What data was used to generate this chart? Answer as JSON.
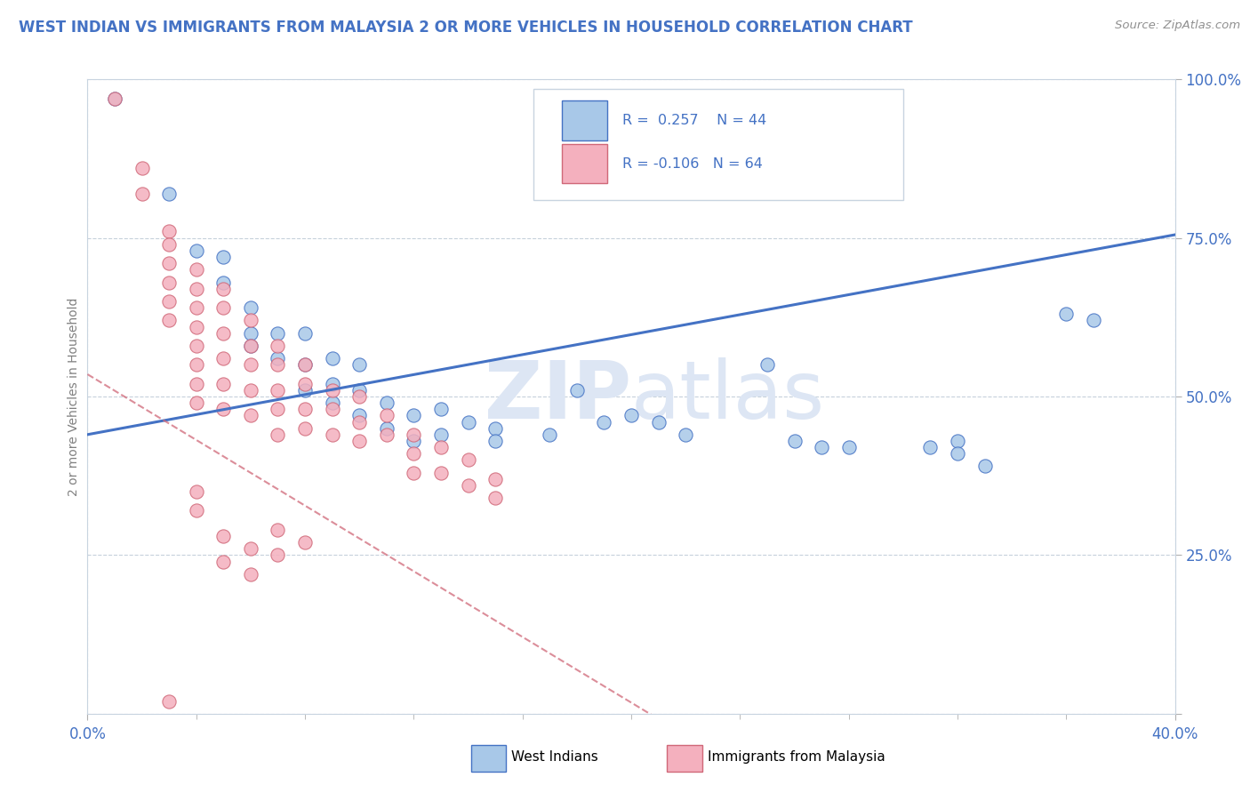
{
  "title": "WEST INDIAN VS IMMIGRANTS FROM MALAYSIA 2 OR MORE VEHICLES IN HOUSEHOLD CORRELATION CHART",
  "source": "Source: ZipAtlas.com",
  "ylabel_label": "2 or more Vehicles in Household",
  "x_min": 0.0,
  "x_max": 0.4,
  "y_min": 0.0,
  "y_max": 1.0,
  "legend_r1": "R =  0.257",
  "legend_n1": "N = 44",
  "legend_r2": "R = -0.106",
  "legend_n2": "N = 64",
  "blue_fill": "#a8c8e8",
  "blue_edge": "#4472c4",
  "pink_fill": "#f4b0be",
  "pink_edge": "#d06878",
  "blue_line_color": "#4472c4",
  "pink_line_color": "#d06878",
  "title_color": "#4472c4",
  "source_color": "#909090",
  "ylabel_color": "#808080",
  "tick_color": "#4472c4",
  "grid_color": "#c0ccd8",
  "watermark_color": "#dde6f4",
  "blue_scatter": [
    [
      0.01,
      0.97
    ],
    [
      0.03,
      0.82
    ],
    [
      0.04,
      0.73
    ],
    [
      0.05,
      0.72
    ],
    [
      0.05,
      0.68
    ],
    [
      0.06,
      0.64
    ],
    [
      0.06,
      0.6
    ],
    [
      0.06,
      0.58
    ],
    [
      0.07,
      0.6
    ],
    [
      0.07,
      0.56
    ],
    [
      0.08,
      0.6
    ],
    [
      0.08,
      0.55
    ],
    [
      0.08,
      0.51
    ],
    [
      0.09,
      0.56
    ],
    [
      0.09,
      0.52
    ],
    [
      0.09,
      0.49
    ],
    [
      0.1,
      0.55
    ],
    [
      0.1,
      0.51
    ],
    [
      0.1,
      0.47
    ],
    [
      0.11,
      0.49
    ],
    [
      0.11,
      0.45
    ],
    [
      0.12,
      0.47
    ],
    [
      0.12,
      0.43
    ],
    [
      0.13,
      0.48
    ],
    [
      0.13,
      0.44
    ],
    [
      0.14,
      0.46
    ],
    [
      0.15,
      0.45
    ],
    [
      0.15,
      0.43
    ],
    [
      0.17,
      0.44
    ],
    [
      0.18,
      0.51
    ],
    [
      0.19,
      0.46
    ],
    [
      0.2,
      0.47
    ],
    [
      0.21,
      0.46
    ],
    [
      0.22,
      0.44
    ],
    [
      0.25,
      0.55
    ],
    [
      0.26,
      0.43
    ],
    [
      0.27,
      0.42
    ],
    [
      0.28,
      0.42
    ],
    [
      0.31,
      0.42
    ],
    [
      0.32,
      0.43
    ],
    [
      0.32,
      0.41
    ],
    [
      0.33,
      0.39
    ],
    [
      0.36,
      0.63
    ],
    [
      0.37,
      0.62
    ]
  ],
  "pink_scatter": [
    [
      0.01,
      0.97
    ],
    [
      0.02,
      0.86
    ],
    [
      0.02,
      0.82
    ],
    [
      0.03,
      0.76
    ],
    [
      0.03,
      0.74
    ],
    [
      0.03,
      0.71
    ],
    [
      0.03,
      0.68
    ],
    [
      0.03,
      0.65
    ],
    [
      0.03,
      0.62
    ],
    [
      0.04,
      0.7
    ],
    [
      0.04,
      0.67
    ],
    [
      0.04,
      0.64
    ],
    [
      0.04,
      0.61
    ],
    [
      0.04,
      0.58
    ],
    [
      0.04,
      0.55
    ],
    [
      0.04,
      0.52
    ],
    [
      0.04,
      0.49
    ],
    [
      0.05,
      0.67
    ],
    [
      0.05,
      0.64
    ],
    [
      0.05,
      0.6
    ],
    [
      0.05,
      0.56
    ],
    [
      0.05,
      0.52
    ],
    [
      0.05,
      0.48
    ],
    [
      0.06,
      0.62
    ],
    [
      0.06,
      0.58
    ],
    [
      0.06,
      0.55
    ],
    [
      0.06,
      0.51
    ],
    [
      0.06,
      0.47
    ],
    [
      0.07,
      0.58
    ],
    [
      0.07,
      0.55
    ],
    [
      0.07,
      0.51
    ],
    [
      0.07,
      0.48
    ],
    [
      0.07,
      0.44
    ],
    [
      0.08,
      0.55
    ],
    [
      0.08,
      0.52
    ],
    [
      0.08,
      0.48
    ],
    [
      0.08,
      0.45
    ],
    [
      0.09,
      0.51
    ],
    [
      0.09,
      0.48
    ],
    [
      0.09,
      0.44
    ],
    [
      0.1,
      0.5
    ],
    [
      0.1,
      0.46
    ],
    [
      0.1,
      0.43
    ],
    [
      0.11,
      0.47
    ],
    [
      0.11,
      0.44
    ],
    [
      0.12,
      0.44
    ],
    [
      0.12,
      0.41
    ],
    [
      0.12,
      0.38
    ],
    [
      0.13,
      0.42
    ],
    [
      0.13,
      0.38
    ],
    [
      0.14,
      0.4
    ],
    [
      0.14,
      0.36
    ],
    [
      0.15,
      0.37
    ],
    [
      0.15,
      0.34
    ],
    [
      0.03,
      0.02
    ],
    [
      0.04,
      0.35
    ],
    [
      0.04,
      0.32
    ],
    [
      0.05,
      0.28
    ],
    [
      0.05,
      0.24
    ],
    [
      0.06,
      0.26
    ],
    [
      0.06,
      0.22
    ],
    [
      0.07,
      0.29
    ],
    [
      0.07,
      0.25
    ],
    [
      0.08,
      0.27
    ]
  ]
}
